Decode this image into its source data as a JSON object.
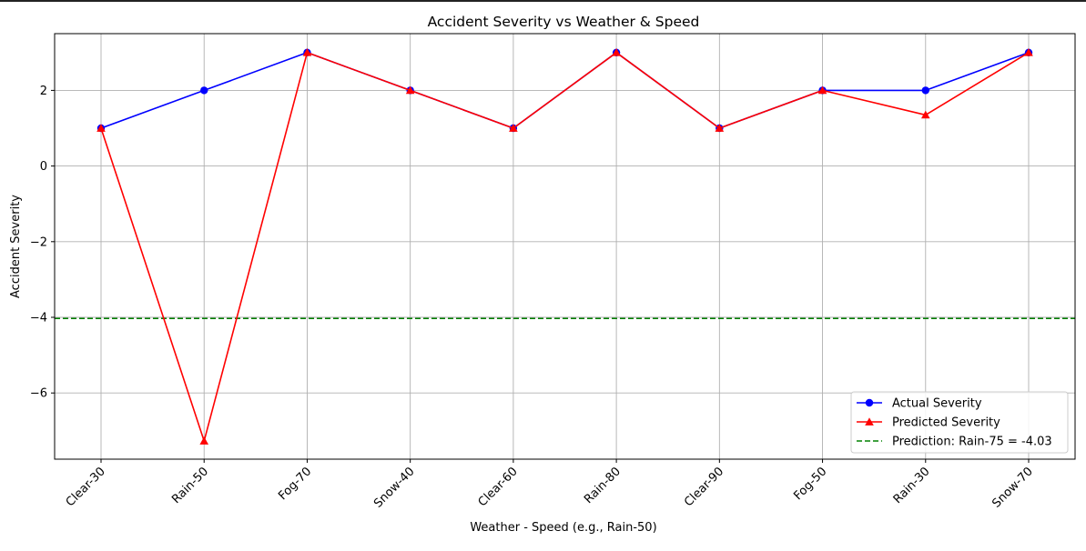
{
  "chart_data": {
    "type": "line",
    "title": "Accident Severity vs Weather & Speed",
    "xlabel": "Weather - Speed (e.g., Rain-50)",
    "ylabel": "Accident Severity",
    "categories": [
      "Clear-30",
      "Rain-50",
      "Fog-70",
      "Snow-40",
      "Clear-60",
      "Rain-80",
      "Clear-90",
      "Fog-50",
      "Rain-30",
      "Snow-70"
    ],
    "ylim": [
      -7.75,
      3.5
    ],
    "yticks": [
      -6,
      -4,
      -2,
      0,
      2
    ],
    "ytick_labels": [
      "−6",
      "−4",
      "−2",
      "0",
      "2"
    ],
    "grid": true,
    "legend_position": "lower-right",
    "series": [
      {
        "name": "Actual Severity",
        "color": "#0000ff",
        "marker": "circle",
        "values": [
          1,
          2,
          3,
          2,
          1,
          3,
          1,
          2,
          2,
          3
        ]
      },
      {
        "name": "Predicted Severity",
        "color": "#ff0000",
        "marker": "triangle",
        "values": [
          1,
          -7.27,
          3,
          2,
          1,
          3,
          1,
          2,
          1.35,
          3
        ]
      }
    ],
    "reference_line": {
      "name": "Prediction: Rain-75 = -4.03",
      "value": -4.03,
      "color": "#008000",
      "style": "dashed"
    }
  }
}
